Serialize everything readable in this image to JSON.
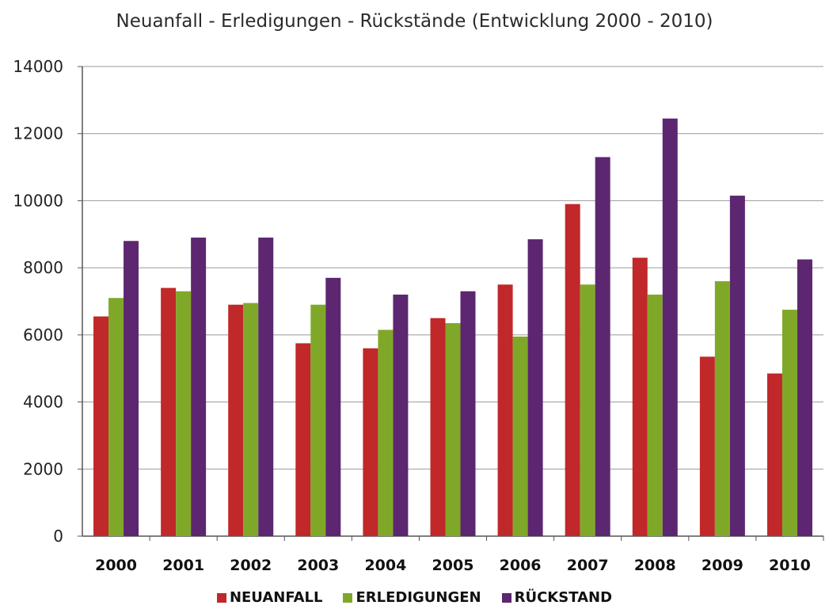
{
  "chart_data": {
    "type": "bar",
    "title": "Neuanfall - Erledigungen - Rückstände (Entwicklung 2000 - 2010)",
    "xlabel": "",
    "ylabel": "",
    "ylim": [
      0,
      14000
    ],
    "yticks": [
      "0",
      "2000",
      "4000",
      "6000",
      "8000",
      "10000",
      "12000",
      "14000"
    ],
    "categories": [
      "2000",
      "2001",
      "2002",
      "2003",
      "2004",
      "2005",
      "2006",
      "2007",
      "2008",
      "2009",
      "2010"
    ],
    "grid": true,
    "legend_position": "bottom",
    "series": [
      {
        "name": "NEUANFALL",
        "color": "#c0282a",
        "values": [
          6550,
          7400,
          6900,
          5750,
          5600,
          6500,
          7500,
          9900,
          8300,
          5350,
          4850
        ]
      },
      {
        "name": "ERLEDIGUNGEN",
        "color": "#80a828",
        "values": [
          7100,
          7300,
          6950,
          6900,
          6150,
          6350,
          5950,
          7500,
          7200,
          7600,
          6750
        ]
      },
      {
        "name": "RÜCKSTAND",
        "color": "#5c2670",
        "values": [
          8800,
          8900,
          8900,
          7700,
          7200,
          7300,
          8850,
          11300,
          12450,
          10150,
          8250
        ]
      }
    ]
  }
}
